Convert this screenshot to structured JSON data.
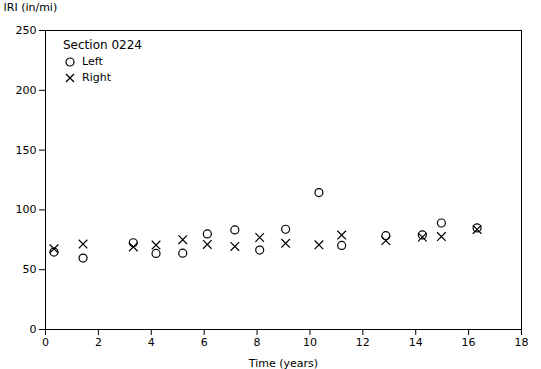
{
  "chart_data": {
    "type": "scatter",
    "xlabel": "Time (years)",
    "ylabel": "IRI (in/mi)",
    "annotation": "Section 0224",
    "x": [
      0.32,
      1.42,
      3.32,
      4.18,
      5.19,
      6.12,
      7.16,
      8.1,
      9.08,
      10.34,
      11.2,
      12.87,
      14.25,
      14.97,
      16.32
    ],
    "series": [
      {
        "name": "Left",
        "color": "black",
        "marker": "open_circle",
        "values": [
          64.7,
          59.74,
          72.53,
          63.57,
          63.78,
          79.95,
          83.25,
          66.41,
          83.82,
          114.47,
          70.32,
          78.44,
          79.06,
          89.03,
          84.96
        ]
      },
      {
        "name": "Right",
        "color": "black",
        "marker": "x",
        "values": [
          67.44,
          71.43,
          69.01,
          70.57,
          75.09,
          71.09,
          69.49,
          76.93,
          72.08,
          70.77,
          78.97,
          74.3,
          77.24,
          77.68,
          83.64
        ]
      }
    ],
    "xlim": [
      0,
      18
    ],
    "ylim": [
      0,
      250
    ],
    "xticks": [
      0,
      2,
      4,
      6,
      8,
      10,
      12,
      14,
      16,
      18
    ],
    "yticks": [
      0,
      50,
      100,
      150,
      200,
      250
    ],
    "grid": false,
    "legend": "upper left"
  }
}
